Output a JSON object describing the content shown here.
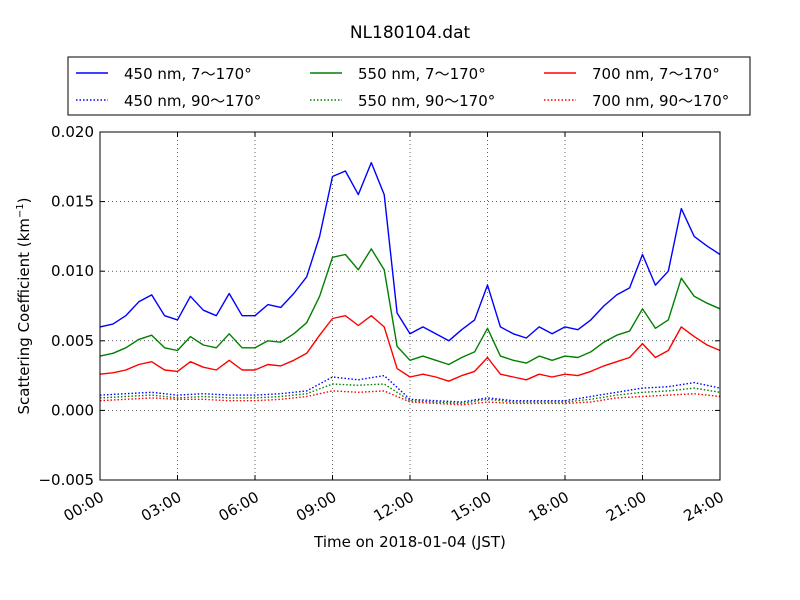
{
  "chart_data": {
    "type": "line",
    "title": "NL180104.dat",
    "xlabel": "Time on 2018-01-04 (JST)",
    "ylabel": "Scattering Coefficient (km",
    "ylabel_sup": "−1",
    "ylabel_close": ")",
    "xlim": [
      "2018-01-04T00:00",
      "2018-01-05T00:00"
    ],
    "ylim": [
      -0.005,
      0.02
    ],
    "x_ticks": [
      {
        "value": "2018-01-04T00:00",
        "label": "00:00"
      },
      {
        "value": "2018-01-04T03:00",
        "label": "03:00"
      },
      {
        "value": "2018-01-04T06:00",
        "label": "06:00"
      },
      {
        "value": "2018-01-04T09:00",
        "label": "09:00"
      },
      {
        "value": "2018-01-04T12:00",
        "label": "12:00"
      },
      {
        "value": "2018-01-04T15:00",
        "label": "15:00"
      },
      {
        "value": "2018-01-04T18:00",
        "label": "18:00"
      },
      {
        "value": "2018-01-04T21:00",
        "label": "21:00"
      },
      {
        "value": "2018-01-05T00:00",
        "label": "24:00"
      }
    ],
    "y_ticks": [
      {
        "value": -0.005,
        "label": "−0.005"
      },
      {
        "value": 0.0,
        "label": "0.000"
      },
      {
        "value": 0.005,
        "label": "0.005"
      },
      {
        "value": 0.01,
        "label": "0.010"
      },
      {
        "value": 0.015,
        "label": "0.015"
      },
      {
        "value": 0.02,
        "label": "0.020"
      }
    ],
    "grid": true,
    "legend_position": "above-plot",
    "series": [
      {
        "name": "450 nm, 7～170°",
        "color": "#0000ff",
        "style": "solid",
        "x": [
          "00:00",
          "00:30",
          "01:00",
          "01:30",
          "02:00",
          "02:30",
          "03:00",
          "03:30",
          "04:00",
          "04:30",
          "05:00",
          "05:30",
          "06:00",
          "06:30",
          "07:00",
          "07:30",
          "08:00",
          "08:30",
          "09:00",
          "09:30",
          "10:00",
          "10:30",
          "11:00",
          "11:30",
          "12:00",
          "12:30",
          "13:00",
          "13:30",
          "14:00",
          "14:30",
          "15:00",
          "15:30",
          "16:00",
          "16:30",
          "17:00",
          "17:30",
          "18:00",
          "18:30",
          "19:00",
          "19:30",
          "20:00",
          "20:30",
          "21:00",
          "21:30",
          "22:00",
          "22:30",
          "23:00",
          "23:30",
          "24:00"
        ],
        "values": [
          0.006,
          0.0062,
          0.0068,
          0.0078,
          0.0083,
          0.0068,
          0.0065,
          0.0082,
          0.0072,
          0.0068,
          0.0084,
          0.0068,
          0.0068,
          0.0076,
          0.0074,
          0.0084,
          0.0096,
          0.0125,
          0.0168,
          0.0172,
          0.0155,
          0.0178,
          0.0155,
          0.007,
          0.0055,
          0.006,
          0.0055,
          0.005,
          0.0058,
          0.0065,
          0.009,
          0.006,
          0.0055,
          0.0052,
          0.006,
          0.0055,
          0.006,
          0.0058,
          0.0065,
          0.0075,
          0.0083,
          0.0088,
          0.0112,
          0.009,
          0.01,
          0.0145,
          0.0125,
          0.0118,
          0.0112
        ]
      },
      {
        "name": "550 nm, 7～170°",
        "color": "#008000",
        "style": "solid",
        "x": [
          "00:00",
          "00:30",
          "01:00",
          "01:30",
          "02:00",
          "02:30",
          "03:00",
          "03:30",
          "04:00",
          "04:30",
          "05:00",
          "05:30",
          "06:00",
          "06:30",
          "07:00",
          "07:30",
          "08:00",
          "08:30",
          "09:00",
          "09:30",
          "10:00",
          "10:30",
          "11:00",
          "11:30",
          "12:00",
          "12:30",
          "13:00",
          "13:30",
          "14:00",
          "14:30",
          "15:00",
          "15:30",
          "16:00",
          "16:30",
          "17:00",
          "17:30",
          "18:00",
          "18:30",
          "19:00",
          "19:30",
          "20:00",
          "20:30",
          "21:00",
          "21:30",
          "22:00",
          "22:30",
          "23:00",
          "23:30",
          "24:00"
        ],
        "values": [
          0.0039,
          0.0041,
          0.0045,
          0.0051,
          0.0054,
          0.0045,
          0.0043,
          0.0053,
          0.0047,
          0.0045,
          0.0055,
          0.0045,
          0.0045,
          0.005,
          0.0049,
          0.0055,
          0.0063,
          0.0082,
          0.011,
          0.0112,
          0.0101,
          0.0116,
          0.0101,
          0.0046,
          0.0036,
          0.0039,
          0.0036,
          0.0033,
          0.0038,
          0.0042,
          0.0059,
          0.0039,
          0.0036,
          0.0034,
          0.0039,
          0.0036,
          0.0039,
          0.0038,
          0.0042,
          0.0049,
          0.0054,
          0.0057,
          0.0073,
          0.0059,
          0.0065,
          0.0095,
          0.0082,
          0.0077,
          0.0073
        ]
      },
      {
        "name": "700 nm, 7～170°",
        "color": "#ff0000",
        "style": "solid",
        "x": [
          "00:00",
          "00:30",
          "01:00",
          "01:30",
          "02:00",
          "02:30",
          "03:00",
          "03:30",
          "04:00",
          "04:30",
          "05:00",
          "05:30",
          "06:00",
          "06:30",
          "07:00",
          "07:30",
          "08:00",
          "08:30",
          "09:00",
          "09:30",
          "10:00",
          "10:30",
          "11:00",
          "11:30",
          "12:00",
          "12:30",
          "13:00",
          "13:30",
          "14:00",
          "14:30",
          "15:00",
          "15:30",
          "16:00",
          "16:30",
          "17:00",
          "17:30",
          "18:00",
          "18:30",
          "19:00",
          "19:30",
          "20:00",
          "20:30",
          "21:00",
          "21:30",
          "22:00",
          "22:30",
          "23:00",
          "23:30",
          "24:00"
        ],
        "values": [
          0.0026,
          0.0027,
          0.0029,
          0.0033,
          0.0035,
          0.0029,
          0.0028,
          0.0035,
          0.0031,
          0.0029,
          0.0036,
          0.0029,
          0.0029,
          0.0033,
          0.0032,
          0.0036,
          0.0041,
          0.0054,
          0.0066,
          0.0068,
          0.0061,
          0.0068,
          0.006,
          0.003,
          0.0024,
          0.0026,
          0.0024,
          0.0021,
          0.0025,
          0.0028,
          0.0038,
          0.0026,
          0.0024,
          0.0022,
          0.0026,
          0.0024,
          0.0026,
          0.0025,
          0.0028,
          0.0032,
          0.0035,
          0.0038,
          0.0048,
          0.0038,
          0.0043,
          0.006,
          0.0053,
          0.0047,
          0.0043
        ]
      },
      {
        "name": "450 nm, 90～170°",
        "color": "#0000ff",
        "style": "dotted",
        "x": [
          "00:00",
          "01:00",
          "02:00",
          "03:00",
          "04:00",
          "05:00",
          "06:00",
          "07:00",
          "08:00",
          "09:00",
          "10:00",
          "11:00",
          "12:00",
          "13:00",
          "14:00",
          "15:00",
          "16:00",
          "17:00",
          "18:00",
          "19:00",
          "20:00",
          "21:00",
          "22:00",
          "23:00",
          "24:00"
        ],
        "values": [
          0.0011,
          0.0012,
          0.0013,
          0.0011,
          0.0012,
          0.0011,
          0.0011,
          0.0012,
          0.0014,
          0.0024,
          0.0022,
          0.0025,
          0.0008,
          0.0007,
          0.0006,
          0.0009,
          0.0007,
          0.0007,
          0.0007,
          0.001,
          0.0013,
          0.0016,
          0.0017,
          0.002,
          0.0016
        ]
      },
      {
        "name": "550 nm, 90～170°",
        "color": "#008000",
        "style": "dotted",
        "x": [
          "00:00",
          "01:00",
          "02:00",
          "03:00",
          "04:00",
          "05:00",
          "06:00",
          "07:00",
          "08:00",
          "09:00",
          "10:00",
          "11:00",
          "12:00",
          "13:00",
          "14:00",
          "15:00",
          "16:00",
          "17:00",
          "18:00",
          "19:00",
          "20:00",
          "21:00",
          "22:00",
          "23:00",
          "24:00"
        ],
        "values": [
          0.0009,
          0.001,
          0.0011,
          0.0009,
          0.001,
          0.0009,
          0.0009,
          0.001,
          0.0012,
          0.0019,
          0.0018,
          0.0019,
          0.0007,
          0.0006,
          0.0005,
          0.0008,
          0.0006,
          0.0006,
          0.0006,
          0.0008,
          0.0011,
          0.0013,
          0.0014,
          0.0016,
          0.0013
        ]
      },
      {
        "name": "700 nm, 90～170°",
        "color": "#ff0000",
        "style": "dotted",
        "x": [
          "00:00",
          "01:00",
          "02:00",
          "03:00",
          "04:00",
          "05:00",
          "06:00",
          "07:00",
          "08:00",
          "09:00",
          "10:00",
          "11:00",
          "12:00",
          "13:00",
          "14:00",
          "15:00",
          "16:00",
          "17:00",
          "18:00",
          "19:00",
          "20:00",
          "21:00",
          "22:00",
          "23:00",
          "24:00"
        ],
        "values": [
          0.0007,
          0.0008,
          0.0009,
          0.0008,
          0.0008,
          0.0007,
          0.0007,
          0.0008,
          0.001,
          0.0014,
          0.0013,
          0.0014,
          0.0006,
          0.0005,
          0.0004,
          0.0006,
          0.0005,
          0.0005,
          0.0005,
          0.0006,
          0.0009,
          0.001,
          0.0011,
          0.0012,
          0.001
        ]
      }
    ]
  }
}
